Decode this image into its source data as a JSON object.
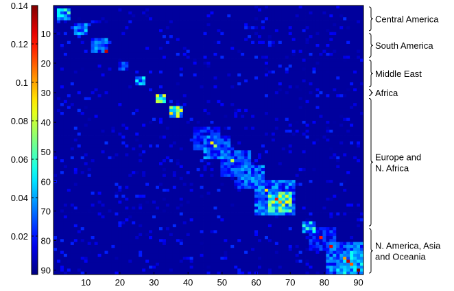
{
  "chart_data": {
    "type": "heatmap",
    "title": "",
    "xlabel": "",
    "ylabel": "",
    "matrix_size": 91,
    "xlim": [
      0.5,
      91.5
    ],
    "ylim": [
      0.5,
      91.5
    ],
    "y_reversed": true,
    "x_ticks": [
      10,
      20,
      30,
      40,
      50,
      60,
      70,
      80,
      90
    ],
    "y_ticks": [
      10,
      20,
      30,
      40,
      50,
      60,
      70,
      80,
      90
    ],
    "colorbar": {
      "min": 0,
      "max": 0.14,
      "ticks": [
        0.02,
        0.04,
        0.06,
        0.08,
        0.1,
        0.12,
        0.14
      ],
      "tick_labels": [
        "0.02",
        "0.04",
        "0.06",
        "0.08",
        "0.1",
        "0.12",
        "0.14"
      ],
      "colormap": "jet"
    },
    "background_value": 0.004,
    "clusters": [
      {
        "label": "Central America",
        "range": [
          1,
          9
        ]
      },
      {
        "label": "South America",
        "range": [
          10,
          18
        ]
      },
      {
        "label": "Middle East",
        "range": [
          19,
          28
        ]
      },
      {
        "label": "Africa",
        "range": [
          29,
          31
        ]
      },
      {
        "label": "Europe and\nN. Africa",
        "range": [
          32,
          75
        ]
      },
      {
        "label": "N. America, Asia\nand Oceania",
        "range": [
          76,
          91
        ]
      }
    ],
    "blocks": [
      {
        "rows": [
          2,
          5
        ],
        "cols": [
          2,
          5
        ],
        "value": 0.055
      },
      {
        "rows": [
          7,
          10
        ],
        "cols": [
          7,
          10
        ],
        "value": 0.04
      },
      {
        "rows": [
          12,
          16
        ],
        "cols": [
          12,
          16
        ],
        "value": 0.035
      },
      {
        "rows": [
          20,
          22
        ],
        "cols": [
          20,
          22
        ],
        "value": 0.03
      },
      {
        "rows": [
          25,
          27
        ],
        "cols": [
          25,
          27
        ],
        "value": 0.05
      },
      {
        "rows": [
          31,
          33
        ],
        "cols": [
          31,
          33
        ],
        "value": 0.07
      },
      {
        "rows": [
          35,
          38
        ],
        "cols": [
          35,
          38
        ],
        "value": 0.075
      },
      {
        "rows": [
          42,
          49
        ],
        "cols": [
          42,
          49
        ],
        "value": 0.025
      },
      {
        "rows": [
          45,
          52
        ],
        "cols": [
          45,
          52
        ],
        "value": 0.035
      },
      {
        "rows": [
          50,
          58
        ],
        "cols": [
          50,
          58
        ],
        "value": 0.03
      },
      {
        "rows": [
          55,
          62
        ],
        "cols": [
          55,
          62
        ],
        "value": 0.035
      },
      {
        "rows": [
          60,
          71
        ],
        "cols": [
          60,
          71
        ],
        "value": 0.035
      },
      {
        "rows": [
          64,
          70
        ],
        "cols": [
          64,
          70
        ],
        "value": 0.07
      },
      {
        "rows": [
          74,
          77
        ],
        "cols": [
          74,
          77
        ],
        "value": 0.05
      },
      {
        "rows": [
          76,
          83
        ],
        "cols": [
          76,
          83
        ],
        "value": 0.025
      },
      {
        "rows": [
          81,
          91
        ],
        "cols": [
          81,
          91
        ],
        "value": 0.035
      },
      {
        "rows": [
          84,
          91
        ],
        "cols": [
          84,
          91
        ],
        "value": 0.045
      }
    ],
    "hotspots": [
      {
        "row": 16,
        "col": 16,
        "value": 0.13
      },
      {
        "row": 47,
        "col": 47,
        "value": 0.09
      },
      {
        "row": 48,
        "col": 48,
        "value": 0.075
      },
      {
        "row": 53,
        "col": 53,
        "value": 0.08
      },
      {
        "row": 63,
        "col": 63,
        "value": 0.09
      },
      {
        "row": 66,
        "col": 66,
        "value": 0.12
      },
      {
        "row": 67,
        "col": 67,
        "value": 0.1
      },
      {
        "row": 79,
        "col": 79,
        "value": 0.12
      },
      {
        "row": 82,
        "col": 82,
        "value": 0.125
      },
      {
        "row": 86,
        "col": 86,
        "value": 0.1
      },
      {
        "row": 87,
        "col": 87,
        "value": 0.13
      },
      {
        "row": 88,
        "col": 88,
        "value": 0.11
      },
      {
        "row": 90,
        "col": 90,
        "value": 0.14
      }
    ]
  }
}
